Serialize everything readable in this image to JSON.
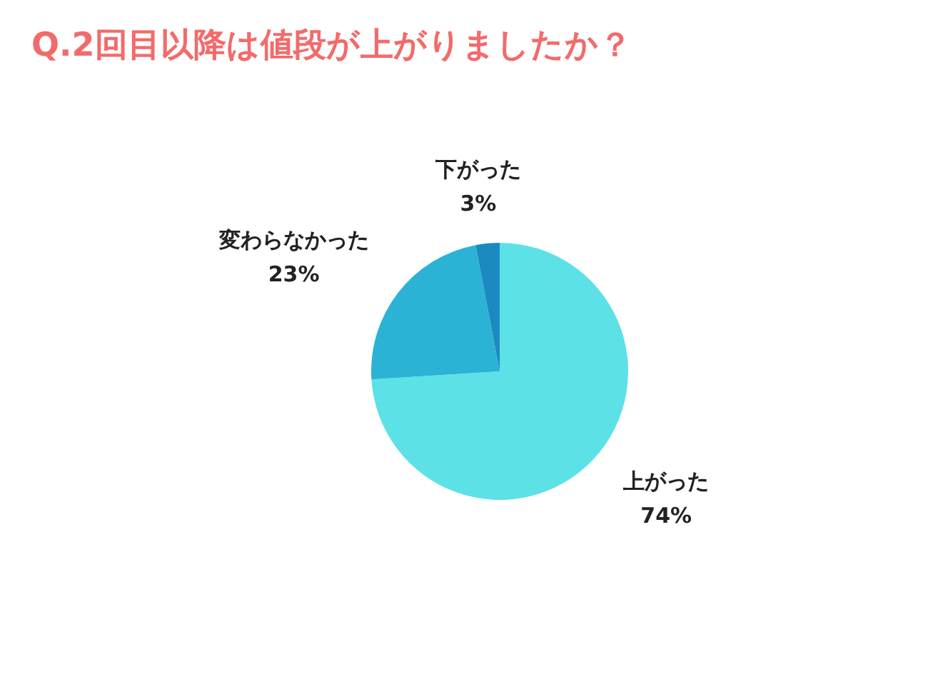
{
  "chart_data": {
    "type": "pie",
    "title": "Q.2回目以降は値段が上がりましたか？",
    "categories": [
      "上がった",
      "変わらなかった",
      "下がった"
    ],
    "values": [
      74,
      23,
      3
    ],
    "value_labels": [
      "74%",
      "23%",
      "3%"
    ],
    "colors": [
      "#5ce1e6",
      "#2bb3d6",
      "#1b8ac0"
    ]
  }
}
